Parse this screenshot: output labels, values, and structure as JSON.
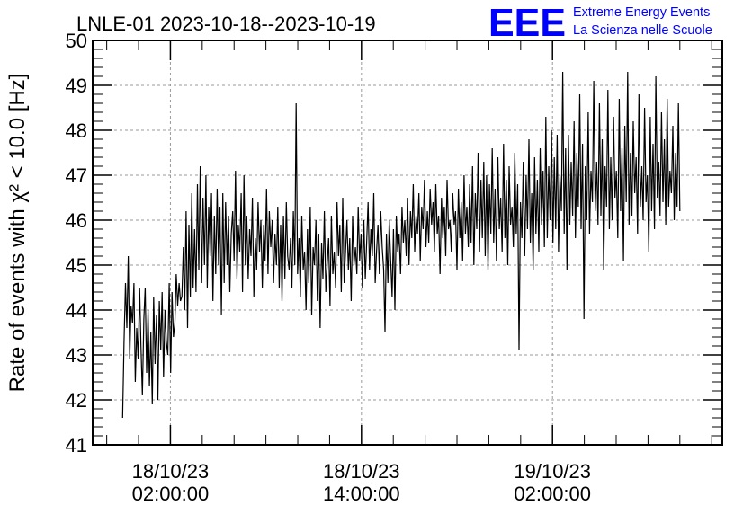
{
  "header": {
    "logo_mark": "EEE",
    "logo_line1": "Extreme Energy Events",
    "logo_line2": "La Scienza nelle Scuole",
    "brand_color": "#0000ff"
  },
  "chart_data": {
    "type": "line",
    "title": "LNLE-01 2023-10-18--2023-10-19",
    "ylabel": "Rate of events with χ² < 10.0 [Hz]",
    "xlabel": "",
    "ylim": [
      41,
      50
    ],
    "yticks": [
      41,
      42,
      43,
      44,
      45,
      46,
      47,
      48,
      49,
      50
    ],
    "x_time_range": [
      "2023-10-17 21:07:00",
      "2023-10-19 12:40:00"
    ],
    "x_ticks": [
      {
        "t": "2023-10-18 02:00:00",
        "line1": "18/10/23",
        "line2": "02:00:00"
      },
      {
        "t": "2023-10-18 14:00:00",
        "line1": "18/10/23",
        "line2": "14:00:00"
      },
      {
        "t": "2023-10-19 02:00:00",
        "line1": "19/10/23",
        "line2": "02:00:00"
      }
    ],
    "grid": true,
    "line_color": "#000000",
    "series": [
      {
        "x_start": "2023-10-17 23:00:00",
        "x_end": "2023-10-19 10:00:00",
        "values": [
          41.6,
          43.3,
          44.6,
          43.6,
          45.2,
          42.9,
          44.1,
          43.7,
          44.6,
          42.4,
          43.6,
          42.9,
          44.5,
          43.2,
          42.1,
          43.8,
          44.5,
          42.6,
          44.0,
          42.3,
          43.5,
          41.9,
          44.3,
          42.8,
          43.9,
          42.0,
          44.2,
          43.1,
          44.4,
          42.5,
          44.0,
          43.3,
          43.0,
          44.6,
          42.6,
          44.4,
          43.4,
          43.7,
          44.8,
          44.1,
          44.6,
          44.2,
          44.3,
          45.4,
          44.0,
          46.2,
          43.6,
          45.9,
          44.3,
          46.6,
          44.5,
          45.8,
          44.4,
          46.8,
          44.9,
          47.2,
          44.6,
          46.5,
          45.0,
          47.0,
          44.5,
          46.3,
          45.2,
          46.6,
          44.2,
          46.1,
          44.8,
          46.7,
          45.0,
          46.3,
          43.9,
          46.6,
          44.6,
          46.4,
          45.0,
          46.1,
          44.4,
          45.7,
          46.2,
          45.1,
          47.1,
          44.7,
          45.9,
          45.3,
          46.6,
          44.4,
          47.0,
          45.0,
          46.1,
          44.7,
          45.8,
          45.2,
          46.5,
          44.3,
          45.6,
          44.9,
          46.4,
          45.3,
          46.0,
          44.5,
          45.9,
          45.1,
          46.7,
          44.8,
          46.2,
          45.4,
          46.0,
          44.6,
          45.7,
          45.0,
          46.3,
          44.5,
          45.9,
          44.2,
          46.1,
          44.7,
          46.4,
          45.2,
          44.9,
          45.6,
          44.5,
          46.2,
          45.0,
          48.6,
          44.8,
          45.6,
          44.3,
          46.1,
          44.9,
          45.3,
          44.0,
          45.8,
          44.6,
          46.3,
          43.9,
          45.4,
          45.0,
          46.0,
          44.2,
          45.7,
          43.6,
          45.5,
          44.7,
          46.2,
          44.4,
          45.0,
          45.6,
          44.1,
          46.1,
          44.8,
          45.3,
          44.5,
          46.4,
          45.2,
          45.9,
          44.4,
          46.5,
          44.6,
          45.3,
          46.0,
          44.9,
          45.6,
          44.2,
          46.1,
          45.0,
          45.4,
          44.8,
          46.3,
          45.1,
          45.7,
          44.5,
          46.0,
          44.7,
          45.5,
          46.4,
          44.9,
          45.8,
          45.2,
          46.6,
          44.6,
          45.3,
          45.9,
          44.8,
          46.2,
          45.4,
          44.9,
          43.5,
          45.7,
          44.6,
          46.0,
          45.1,
          44.3,
          45.8,
          44.0,
          46.1,
          45.3,
          45.7,
          44.8,
          46.3,
          45.5,
          46.0,
          45.2,
          46.5,
          45.0,
          46.2,
          45.6,
          46.8,
          45.3,
          46.1,
          45.7,
          46.6,
          45.1,
          46.3,
          45.8,
          46.9,
          45.4,
          46.2,
          45.5,
          46.7,
          45.9,
          46.4,
          45.3,
          46.8,
          45.7,
          46.1,
          44.8,
          46.5,
          45.6,
          46.3,
          45.2,
          46.9,
          45.8,
          46.0,
          45.3,
          46.6,
          45.9,
          46.2,
          44.9,
          46.7,
          45.6,
          46.4,
          45.1,
          47.0,
          45.7,
          46.3,
          45.4,
          46.8,
          45.5,
          47.2,
          45.0,
          46.6,
          45.8,
          47.5,
          45.3,
          46.9,
          45.6,
          47.3,
          45.2,
          47.0,
          44.9,
          46.8,
          45.7,
          47.6,
          45.5,
          46.7,
          45.1,
          47.4,
          45.8,
          46.5,
          45.3,
          47.7,
          45.6,
          46.9,
          45.0,
          47.2,
          45.9,
          46.3,
          45.4,
          47.5,
          45.7,
          46.8,
          43.1,
          46.4,
          45.6,
          47.3,
          45.2,
          47.0,
          45.8,
          47.8,
          45.5,
          46.6,
          44.9,
          47.4,
          45.7,
          46.9,
          45.3,
          47.6,
          45.9,
          47.1,
          45.4,
          48.3,
          45.6,
          47.2,
          46.0,
          48.0,
          45.5,
          47.4,
          45.8,
          47.9,
          45.3,
          47.0,
          46.2,
          49.3,
          45.7,
          47.6,
          44.9,
          47.9,
          45.9,
          47.3,
          46.1,
          48.2,
          45.6,
          47.5,
          46.3,
          48.8,
          45.8,
          47.7,
          43.8,
          47.2,
          46.0,
          48.4,
          45.7,
          47.1,
          46.4,
          49.1,
          46.2,
          47.3,
          45.9,
          48.6,
          46.1,
          47.8,
          44.9,
          47.2,
          46.3,
          48.9,
          45.8,
          47.4,
          46.0,
          48.3,
          46.5,
          47.1,
          45.6,
          48.7,
          46.2,
          47.6,
          45.1,
          48.1,
          46.4,
          49.3,
          45.9,
          47.5,
          46.1,
          48.2,
          46.6,
          47.4,
          45.7,
          48.8,
          46.3,
          47.2,
          46.0,
          48.5,
          46.4,
          47.0,
          45.3,
          48.3,
          46.2,
          47.7,
          45.8,
          49.2,
          46.5,
          47.3,
          46.1,
          48.4,
          46.4,
          47.8,
          45.9,
          48.7,
          46.3,
          47.1,
          46.6,
          48.1,
          46.0,
          47.5,
          46.3,
          48.6,
          46.2
        ]
      }
    ]
  }
}
